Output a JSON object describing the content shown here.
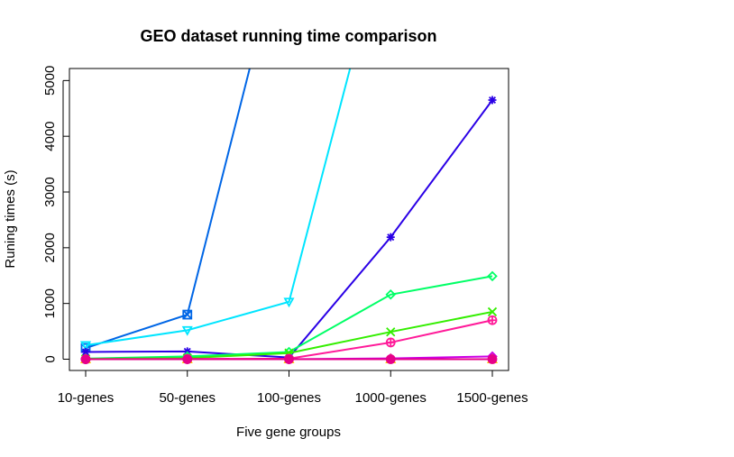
{
  "chart_data": {
    "type": "line",
    "title": "GEO dataset running time comparison",
    "xlabel": "Five gene groups",
    "ylabel": "Runing times (s)",
    "categories": [
      "10-genes",
      "50-genes",
      "100-genes",
      "1000-genes",
      "1500-genes"
    ],
    "y_ticks": [
      0,
      1000,
      2000,
      3000,
      4000,
      5000
    ],
    "ylim": [
      -200,
      5200
    ],
    "grid": false,
    "series": [
      {
        "color": "#0066e6",
        "marker": "square-x",
        "values": [
          200,
          800,
          8000,
          null,
          null
        ]
      },
      {
        "color": "#00e5ff",
        "marker": "triangle-down",
        "values": [
          250,
          520,
          1030,
          8000,
          null
        ]
      },
      {
        "color": "#2a00e6",
        "marker": "asterisk",
        "values": [
          130,
          140,
          30,
          2190,
          4650
        ]
      },
      {
        "color": "#00ff66",
        "marker": "diamond",
        "values": [
          10,
          50,
          130,
          1160,
          1490
        ]
      },
      {
        "color": "#33ee00",
        "marker": "x",
        "values": [
          5,
          20,
          110,
          490,
          850
        ]
      },
      {
        "color": "#ff1a99",
        "marker": "circle-plus",
        "values": [
          0,
          5,
          10,
          300,
          700
        ]
      },
      {
        "color": "#cc00e6",
        "marker": "diamond-filled",
        "values": [
          0,
          0,
          0,
          15,
          50
        ]
      },
      {
        "color": "#ffcc00",
        "marker": "triangle-up",
        "values": [
          0,
          0,
          0,
          0,
          0
        ]
      },
      {
        "color": "#e6008a",
        "marker": "circle-filled",
        "values": [
          0,
          0,
          0,
          0,
          0
        ]
      }
    ]
  }
}
